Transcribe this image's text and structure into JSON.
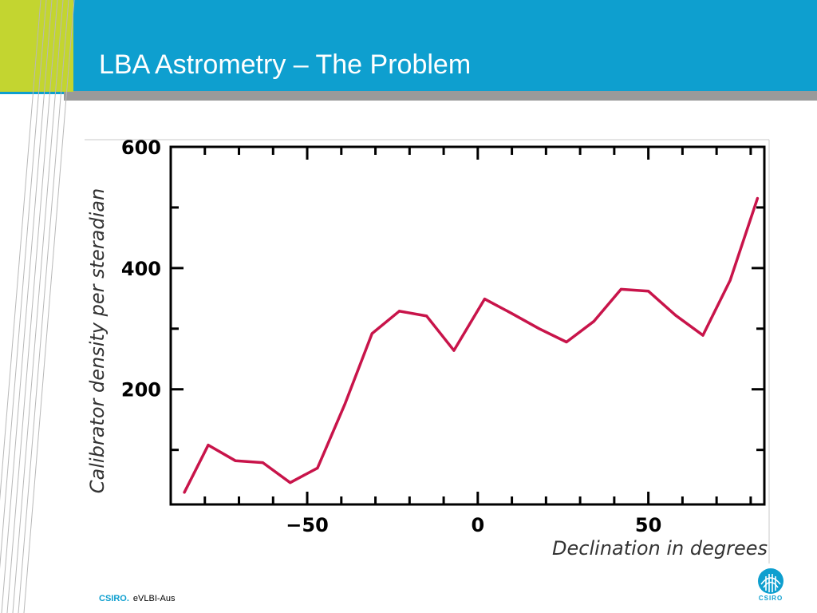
{
  "slide": {
    "title": "LBA Astrometry – The Problem",
    "footer_brand": "CSIRO.",
    "footer_text": "eVLBI-Aus",
    "logo_text": "CSIRO"
  },
  "colors": {
    "header": "#0e9fcf",
    "accent": "#c3d530",
    "line": "#c8144a"
  },
  "chart_data": {
    "type": "line",
    "title": "",
    "xlabel": "Declination in degrees",
    "ylabel": "Calibrator density per steradian",
    "xlim": [
      -90,
      84
    ],
    "ylim": [
      10,
      600
    ],
    "x_ticks": [
      -50,
      0,
      50
    ],
    "x_tick_labels": [
      "−50",
      "0",
      "50"
    ],
    "y_ticks": [
      200,
      400,
      600
    ],
    "y_tick_labels": [
      "200",
      "400",
      "600"
    ],
    "grid": false,
    "series": [
      {
        "x": [
          -86,
          -79,
          -71,
          -63,
          -55,
          -47,
          -39,
          -31,
          -23,
          -15,
          -7,
          2,
          10,
          18,
          26,
          34,
          42,
          50,
          58,
          66,
          74,
          82
        ],
        "y": [
          30,
          108,
          82,
          79,
          46,
          70,
          175,
          292,
          329,
          321,
          264,
          349,
          325,
          300,
          278,
          312,
          365,
          362,
          322,
          289,
          380,
          515
        ]
      }
    ]
  }
}
